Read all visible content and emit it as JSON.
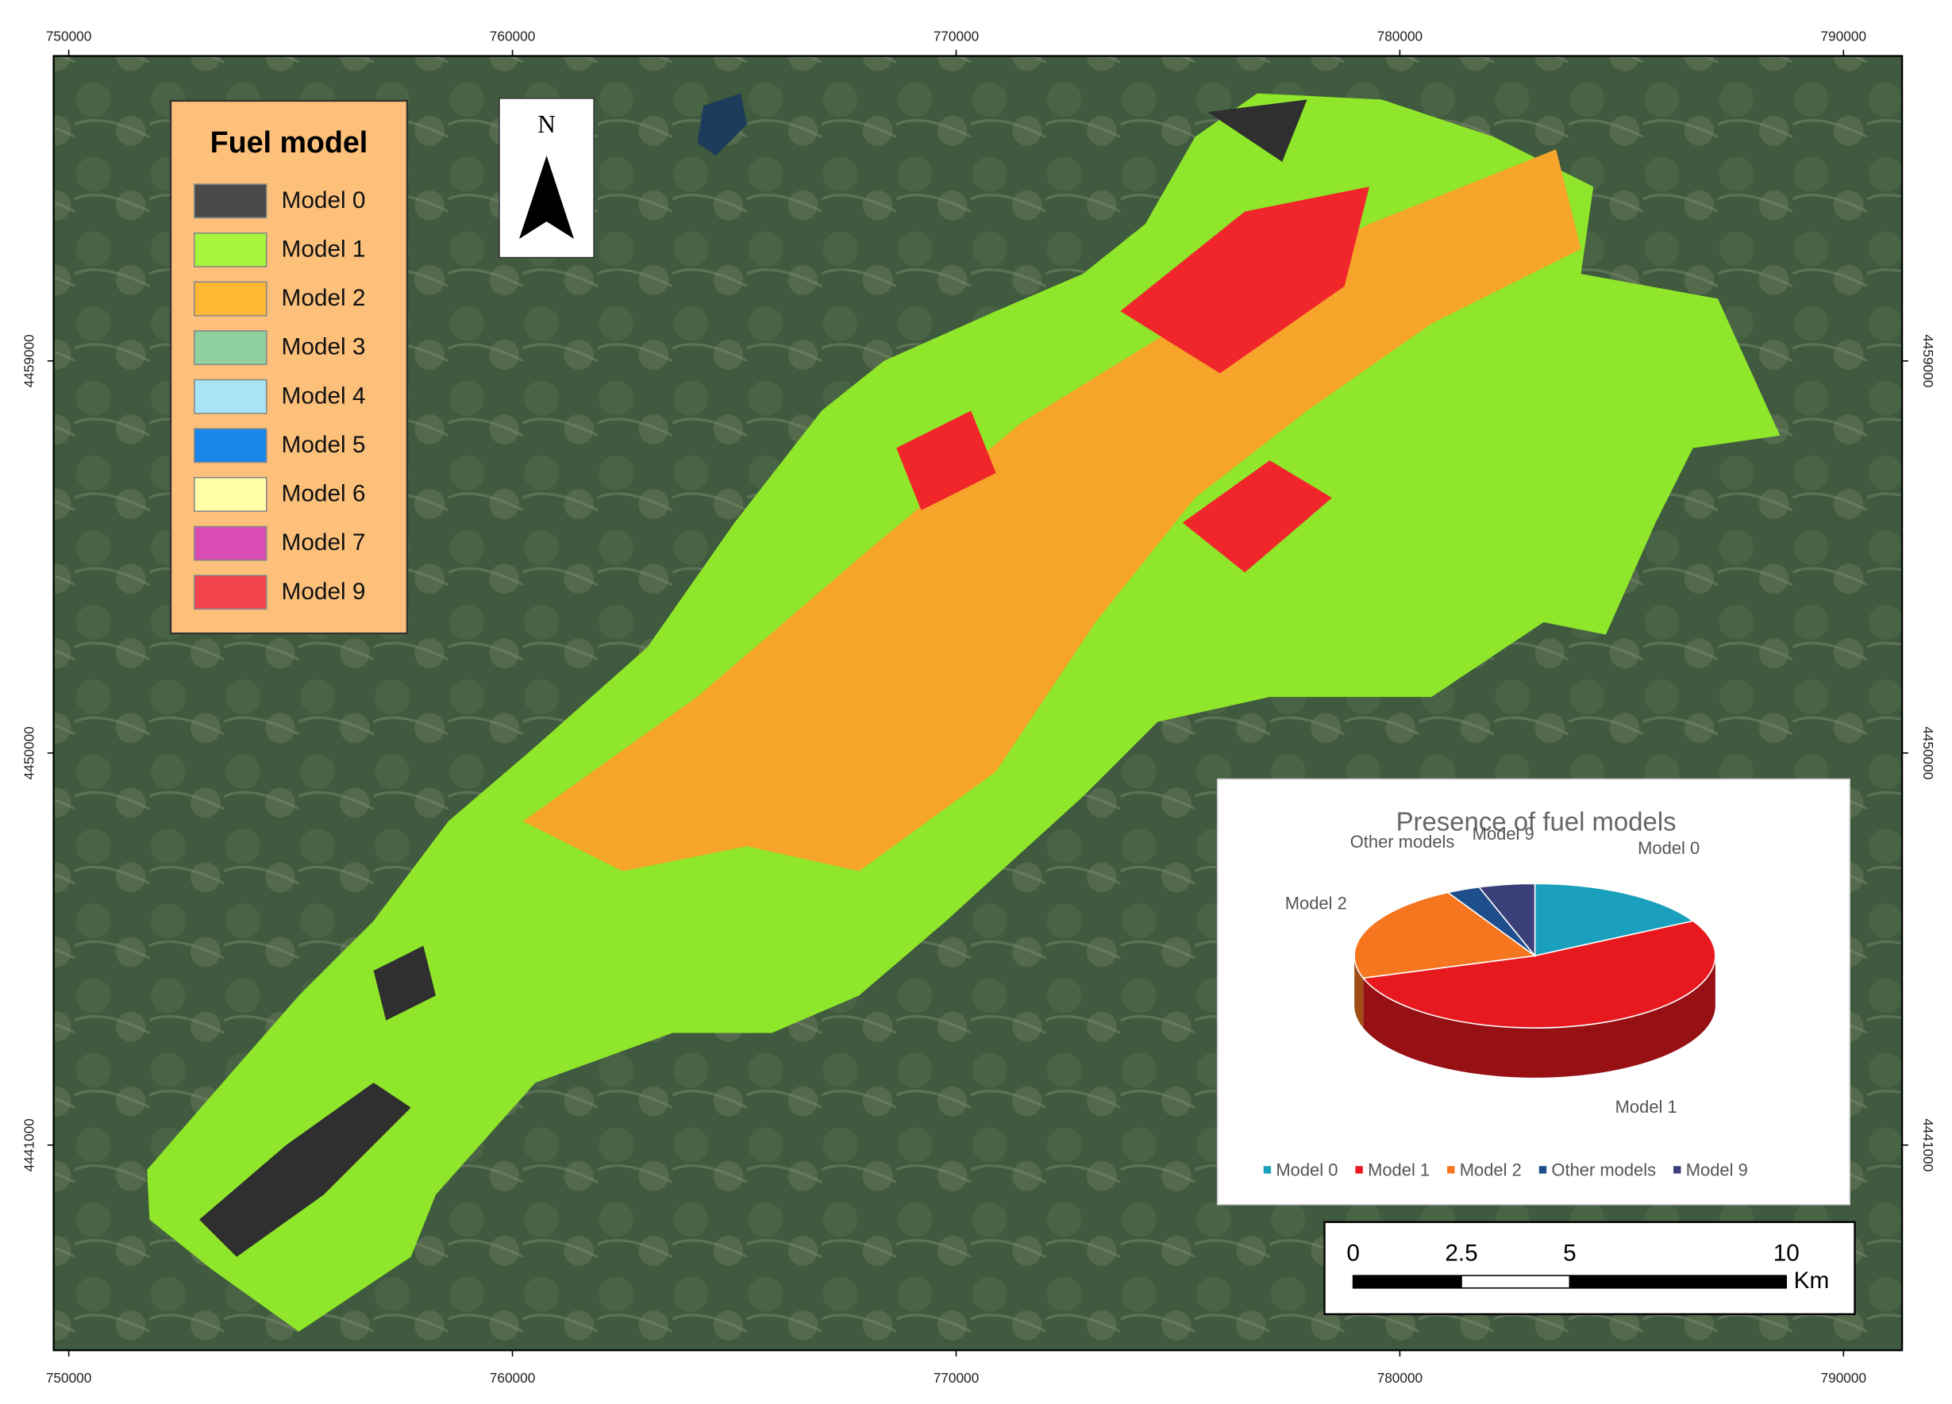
{
  "map": {
    "xlim": [
      749660,
      791320
    ],
    "ylim": [
      4436290,
      4466000
    ],
    "xticks": [
      750000,
      760000,
      770000,
      780000,
      790000
    ],
    "yticks": [
      4441000,
      4450000,
      4459000
    ],
    "north": "N"
  },
  "legend": {
    "title": "Fuel model",
    "items": [
      {
        "name": "Model 0",
        "color": "#4a4a4a"
      },
      {
        "name": "Model 1",
        "color": "#a6f53a"
      },
      {
        "name": "Model 2",
        "color": "#ffb833"
      },
      {
        "name": "Model 3",
        "color": "#8fd19e"
      },
      {
        "name": "Model 4",
        "color": "#a8e4f5"
      },
      {
        "name": "Model 5",
        "color": "#1a86e8"
      },
      {
        "name": "Model 6",
        "color": "#ffffa8"
      },
      {
        "name": "Model 7",
        "color": "#d94bb5"
      },
      {
        "name": "Model 9",
        "color": "#f2434d"
      }
    ]
  },
  "chart_data": {
    "type": "pie3d",
    "title": "Presence of fuel models",
    "categories": [
      "Model 0",
      "Model 1",
      "Model 2",
      "Other models",
      "Model 9"
    ],
    "values": [
      17,
      53,
      22,
      3,
      5
    ],
    "colors": [
      "#1aa0bd",
      "#e8191e",
      "#f5761f",
      "#1f4e8c",
      "#3b3f7a"
    ]
  },
  "scale_bar": {
    "ticks": [
      0,
      2.5,
      5,
      10
    ],
    "unit": "Km"
  }
}
